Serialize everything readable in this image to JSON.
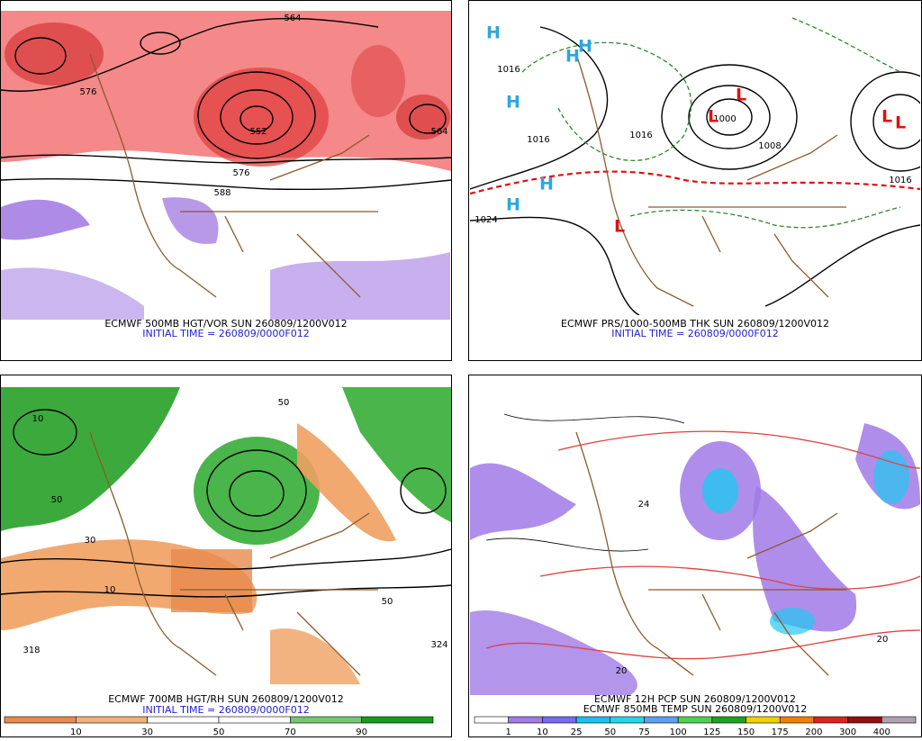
{
  "panels": [
    {
      "captions": [
        "ECMWF 500MB HGT/VOR SUN 260809/1200V012",
        "INITIAL TIME = 260809/0000F012"
      ],
      "labels": [
        "564",
        "576",
        "552",
        "576",
        "588",
        "564"
      ]
    },
    {
      "captions": [
        "ECMWF PRS/1000-500MB THK SUN 260809/1200V012",
        "INITIAL TIME = 260809/0000F012"
      ],
      "labels": [
        "1016",
        "1024",
        "1000",
        "1008",
        "1016",
        "1016",
        "1016"
      ],
      "markers": [
        "H",
        "H",
        "H",
        "H",
        "H",
        "H",
        "L",
        "L",
        "L",
        "L",
        "L"
      ]
    },
    {
      "captions": [
        "ECMWF 700MB HGT/RH SUN 260809/1200V012",
        "INITIAL TIME = 260809/0000F012"
      ],
      "labels": [
        "10",
        "50",
        "30",
        "50",
        "10",
        "50",
        "318",
        "324"
      ],
      "colorbar": {
        "labels": [
          "10",
          "30",
          "50",
          "70",
          "90"
        ],
        "colors": [
          "#e8894e",
          "#f4b07a",
          "#ffffff",
          "#ffffff",
          "#74c874",
          "#1a9a1a"
        ]
      }
    },
    {
      "captions": [
        "ECMWF 12H PCP SUN 260809/1200V012",
        "ECMWF 850MB TEMP SUN 260809/1200V012"
      ],
      "labels": [
        "20",
        "24",
        "20"
      ],
      "colorbar": {
        "labels": [
          "1",
          "10",
          "25",
          "50",
          "75",
          "100",
          "125",
          "150",
          "175",
          "200",
          "300",
          "400"
        ],
        "colors": [
          "#ffffff",
          "#a07ae6",
          "#7a6af0",
          "#19c0f0",
          "#22d8e8",
          "#5aa0f0",
          "#50d050",
          "#20a020",
          "#f0d000",
          "#f08000",
          "#e02020",
          "#901010",
          "#b0a0b0"
        ]
      }
    }
  ]
}
